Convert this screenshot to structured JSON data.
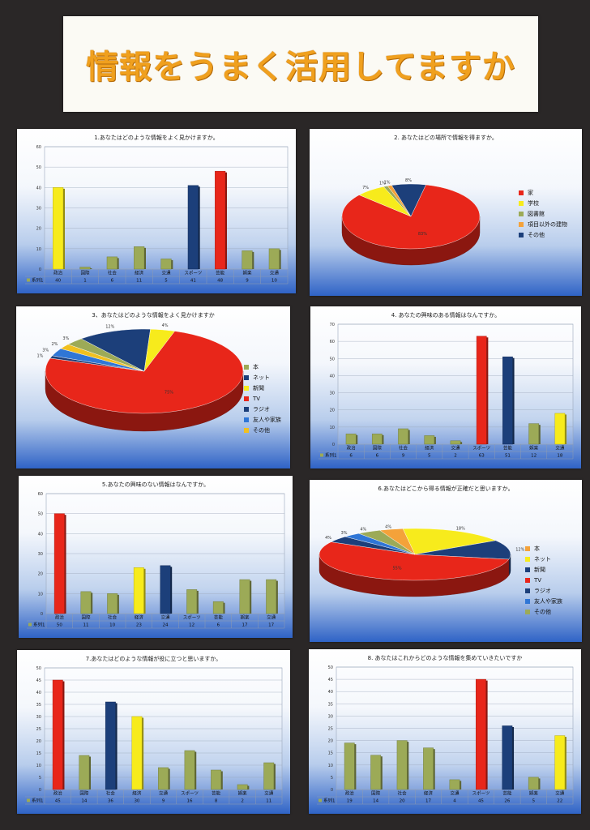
{
  "poster": {
    "title": "情報をうまく活用してますか"
  },
  "series_label": "系列1",
  "colors": {
    "olive": "#9caa57",
    "yellow": "#f7eb1c",
    "red": "#e8261a",
    "navy": "#1c3f7a",
    "blue": "#2f76d6",
    "orange": "#f4a23a",
    "gold": "#f0c020"
  },
  "chart_data": [
    {
      "type": "bar",
      "title": "1.あなたはどのような情報をよく見かけますか。",
      "categories": [
        "政治",
        "国際",
        "社会",
        "経済",
        "交通",
        "スポーツ",
        "芸能",
        "娯楽",
        "交通"
      ],
      "values": [
        40,
        1,
        6,
        11,
        5,
        41,
        48,
        9,
        10
      ],
      "bar_colors": [
        "yellow",
        "olive",
        "olive",
        "olive",
        "olive",
        "navy",
        "red",
        "olive",
        "olive"
      ],
      "ylim": [
        0,
        60
      ],
      "yticks": [
        0,
        10,
        20,
        30,
        40,
        50,
        60
      ]
    },
    {
      "type": "pie",
      "title": "2. あなたはどの場所で情報を得ますか。",
      "labels": [
        "家",
        "学校",
        "図書館",
        "項目以外の建物",
        "その他"
      ],
      "values": [
        83,
        7,
        1,
        1,
        8
      ],
      "pct_labels": [
        "83%",
        "7%",
        "1%",
        "1%",
        "8%"
      ],
      "slice_colors": [
        "red",
        "yellow",
        "olive",
        "orange",
        "navy"
      ]
    },
    {
      "type": "pie",
      "title": "3、あなたはどのような情報をよく見かけますか",
      "labels": [
        "本",
        "ネット",
        "新聞",
        "TV",
        "ラジオ",
        "友人や家族",
        "その他"
      ],
      "values": [
        3,
        12,
        4,
        75,
        1,
        3,
        2
      ],
      "pct_labels": [
        "3%",
        "12%",
        "4%",
        "75%",
        "1%",
        "3%",
        "2%"
      ],
      "slice_colors": [
        "olive",
        "navy",
        "yellow",
        "red",
        "navy",
        "blue",
        "gold"
      ]
    },
    {
      "type": "bar",
      "title": "4. あなたの興味のある情報はなんですか。",
      "categories": [
        "政治",
        "国際",
        "社会",
        "経済",
        "交通",
        "スポーツ",
        "芸能",
        "娯楽",
        "交通"
      ],
      "values": [
        6,
        6,
        9,
        5,
        2,
        63,
        51,
        12,
        18
      ],
      "bar_colors": [
        "olive",
        "olive",
        "olive",
        "olive",
        "olive",
        "red",
        "navy",
        "olive",
        "yellow"
      ],
      "ylim": [
        0,
        70
      ],
      "yticks": [
        0,
        10,
        20,
        30,
        40,
        50,
        60,
        70
      ]
    },
    {
      "type": "bar",
      "title": "5.あなたの興味のない情報はなんですか。",
      "categories": [
        "政治",
        "国際",
        "社会",
        "経済",
        "交通",
        "スポーツ",
        "芸能",
        "娯楽",
        "交通"
      ],
      "values": [
        50,
        11,
        10,
        23,
        24,
        12,
        6,
        17,
        17
      ],
      "bar_colors": [
        "red",
        "olive",
        "olive",
        "yellow",
        "navy",
        "olive",
        "olive",
        "olive",
        "olive"
      ],
      "ylim": [
        0,
        60
      ],
      "yticks": [
        0,
        10,
        20,
        30,
        40,
        50,
        60
      ]
    },
    {
      "type": "pie",
      "title": "6.あなたはどこから得る情報が正確だと思いますか。",
      "labels": [
        "本",
        "ネット",
        "新聞",
        "TV",
        "ラジオ",
        "友人や家族",
        "その他"
      ],
      "values": [
        4,
        18,
        12,
        55,
        4,
        3,
        4
      ],
      "pct_labels": [
        "4%",
        "18%",
        "12%",
        "55%",
        "4%",
        "3%",
        "4%"
      ],
      "slice_colors": [
        "orange",
        "yellow",
        "navy",
        "red",
        "navy",
        "blue",
        "olive"
      ]
    },
    {
      "type": "bar",
      "title": "7.あなたはどのような情報が役に立つと思いますか。",
      "categories": [
        "政治",
        "国際",
        "社会",
        "経済",
        "交通",
        "スポーツ",
        "芸能",
        "娯楽",
        "交通"
      ],
      "values": [
        45,
        14,
        36,
        30,
        9,
        16,
        8,
        2,
        11
      ],
      "bar_colors": [
        "red",
        "olive",
        "navy",
        "yellow",
        "olive",
        "olive",
        "olive",
        "olive",
        "olive"
      ],
      "ylim": [
        0,
        50
      ],
      "yticks": [
        0,
        5,
        10,
        15,
        20,
        25,
        30,
        35,
        40,
        45,
        50
      ]
    },
    {
      "type": "bar",
      "title": "8. あなたはこれからどのような情報を集めていきたいですか",
      "categories": [
        "政治",
        "国際",
        "社会",
        "経済",
        "交通",
        "スポーツ",
        "芸能",
        "娯楽",
        "交通"
      ],
      "values": [
        19,
        14,
        20,
        17,
        4,
        45,
        26,
        5,
        22
      ],
      "bar_colors": [
        "olive",
        "olive",
        "olive",
        "olive",
        "olive",
        "red",
        "navy",
        "olive",
        "yellow"
      ],
      "ylim": [
        0,
        50
      ],
      "yticks": [
        0,
        5,
        10,
        15,
        20,
        25,
        30,
        35,
        40,
        45,
        50
      ]
    }
  ]
}
